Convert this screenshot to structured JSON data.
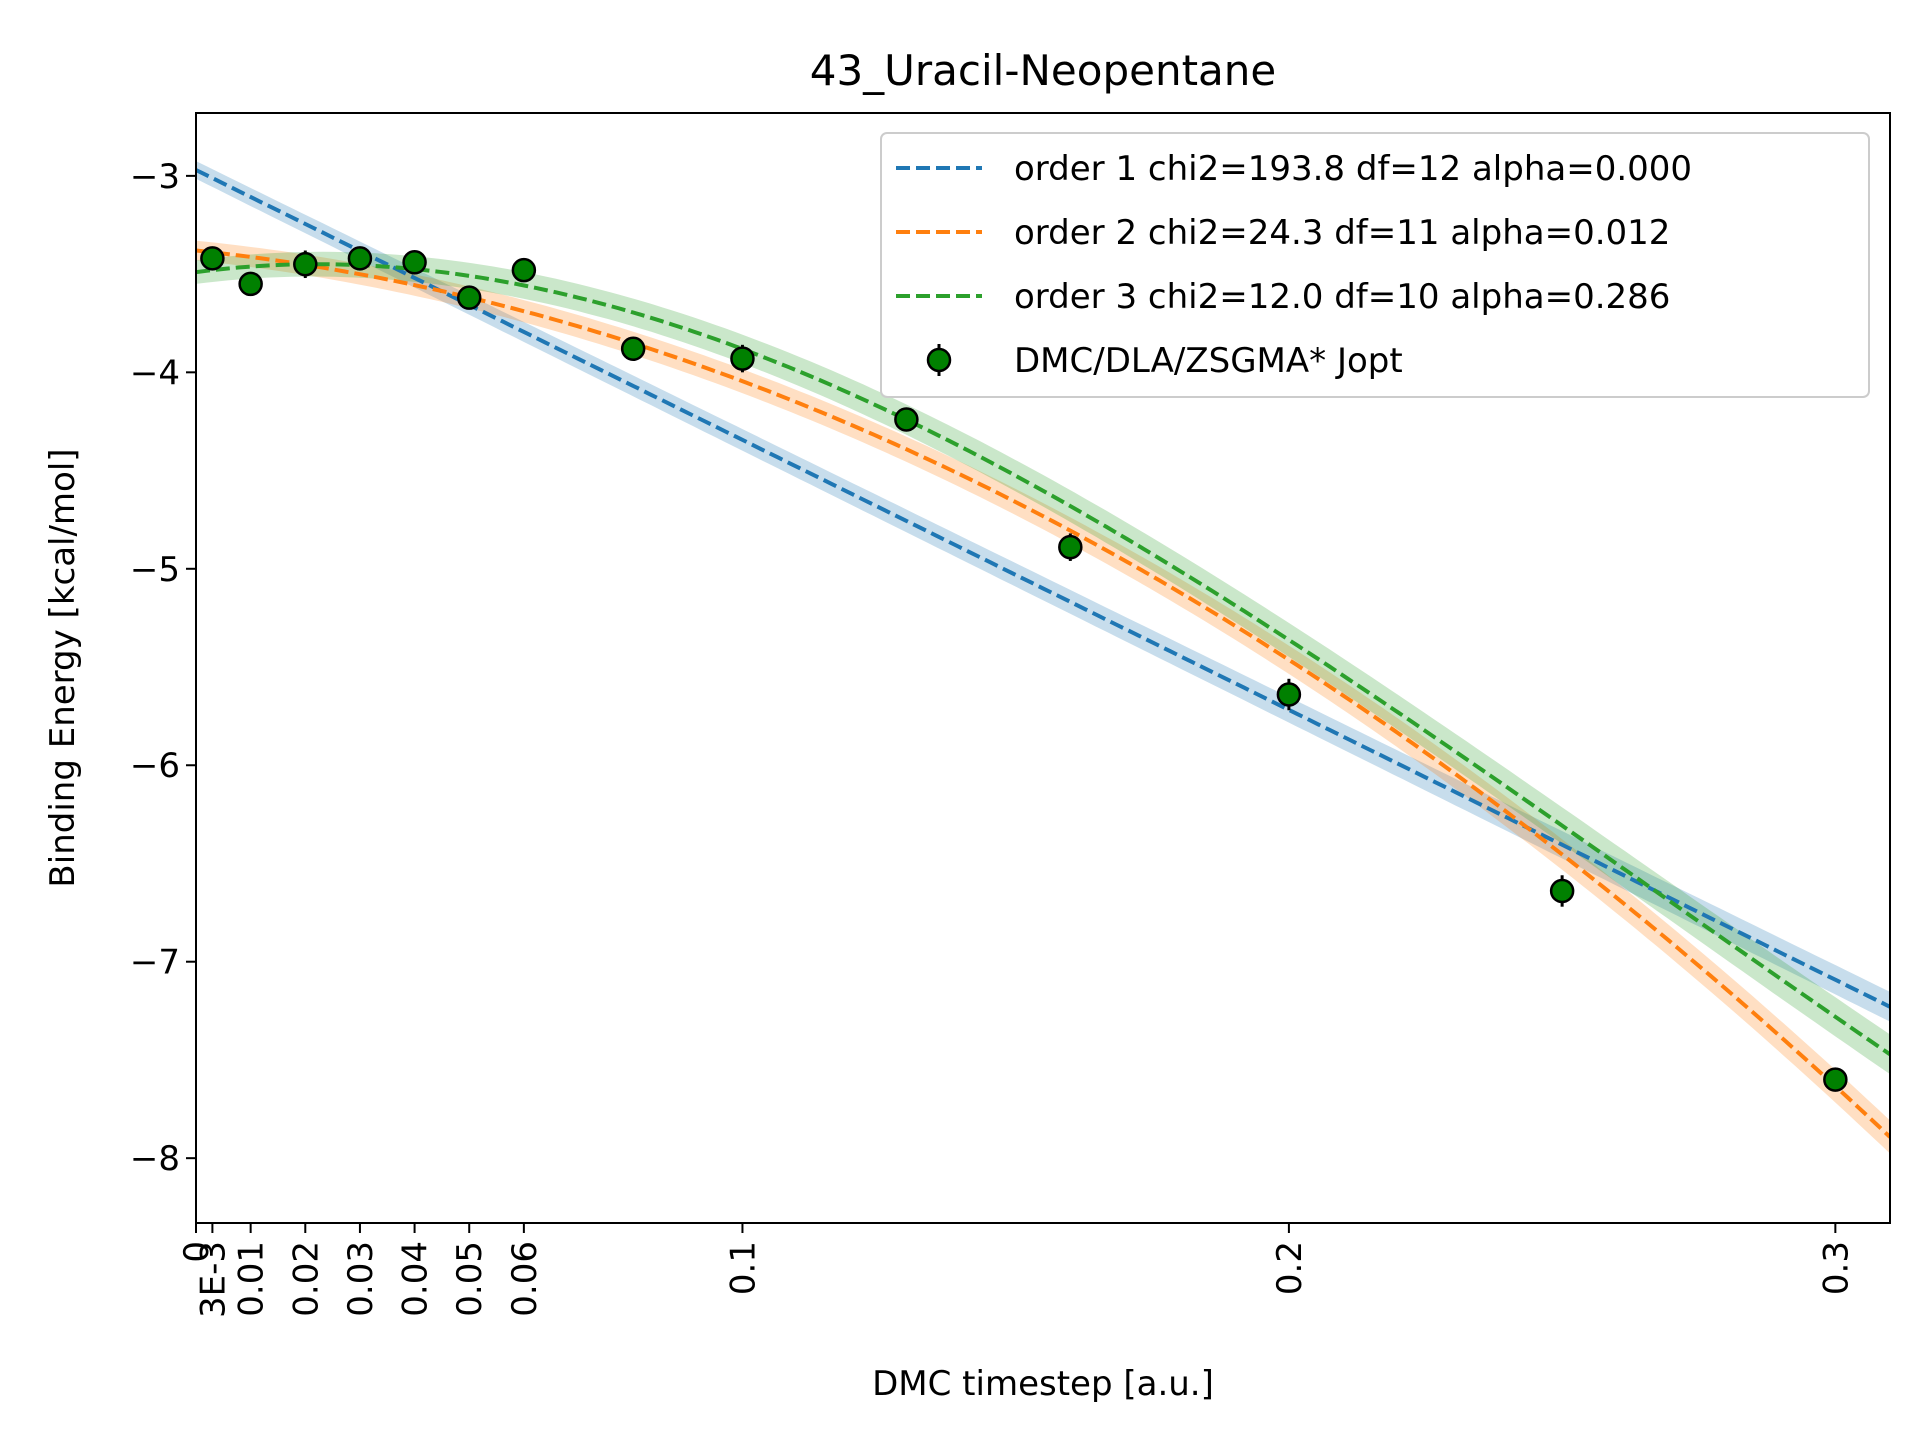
{
  "chart_data": {
    "type": "line",
    "title": "43_Uracil-Neopentane",
    "xlabel": "DMC timestep [a.u.]",
    "ylabel": "Binding Energy [kcal/mol]",
    "xlim": [
      0,
      0.31
    ],
    "ylim": [
      -8.33,
      -2.68
    ],
    "xticks": [
      {
        "value": 0,
        "label": "0"
      },
      {
        "value": 0.003,
        "label": "3E-3"
      },
      {
        "value": 0.01,
        "label": "0.01"
      },
      {
        "value": 0.02,
        "label": "0.02"
      },
      {
        "value": 0.03,
        "label": "0.03"
      },
      {
        "value": 0.04,
        "label": "0.04"
      },
      {
        "value": 0.05,
        "label": "0.05"
      },
      {
        "value": 0.06,
        "label": "0.06"
      },
      {
        "value": 0.1,
        "label": "0.1"
      },
      {
        "value": 0.2,
        "label": "0.2"
      },
      {
        "value": 0.3,
        "label": "0.3"
      }
    ],
    "yticks": [
      {
        "value": -3,
        "label": "−3"
      },
      {
        "value": -4,
        "label": "−4"
      },
      {
        "value": -5,
        "label": "−5"
      },
      {
        "value": -6,
        "label": "−6"
      },
      {
        "value": -7,
        "label": "−7"
      },
      {
        "value": -8,
        "label": "−8"
      }
    ],
    "grid": false,
    "legend_position": "top-right",
    "fits": [
      {
        "name": "order 1 chi2=193.8 df=12 alpha=0.000",
        "color": "#1f77b4",
        "coefficients": [
          -2.97,
          -13.74
        ],
        "band": 0.045
      },
      {
        "name": "order 2 chi2=24.3 df=11 alpha=0.012",
        "color": "#ff7f0e",
        "coefficients": [
          -3.38,
          -2.89,
          -37.63
        ],
        "band": 0.05
      },
      {
        "name": "order 3 chi2=12.0 df=10 alpha=0.286",
        "color": "#2ca02c",
        "coefficients": [
          -3.49,
          3.7,
          -87.0,
          108.5
        ],
        "band": 0.06
      }
    ],
    "points": {
      "name": "DMC/DLA/ZSGMA* Jopt",
      "color": "#008000",
      "x": [
        0.003,
        0.01,
        0.02,
        0.03,
        0.04,
        0.05,
        0.06,
        0.08,
        0.1,
        0.13,
        0.16,
        0.2,
        0.25,
        0.3
      ],
      "y": [
        -3.42,
        -3.55,
        -3.45,
        -3.42,
        -3.44,
        -3.62,
        -3.48,
        -3.88,
        -3.93,
        -4.24,
        -4.89,
        -5.64,
        -6.64,
        -7.6
      ],
      "err": [
        0.06,
        0.05,
        0.07,
        0.05,
        0.06,
        0.06,
        0.06,
        0.05,
        0.07,
        0.06,
        0.07,
        0.08,
        0.08,
        0.06
      ]
    }
  }
}
